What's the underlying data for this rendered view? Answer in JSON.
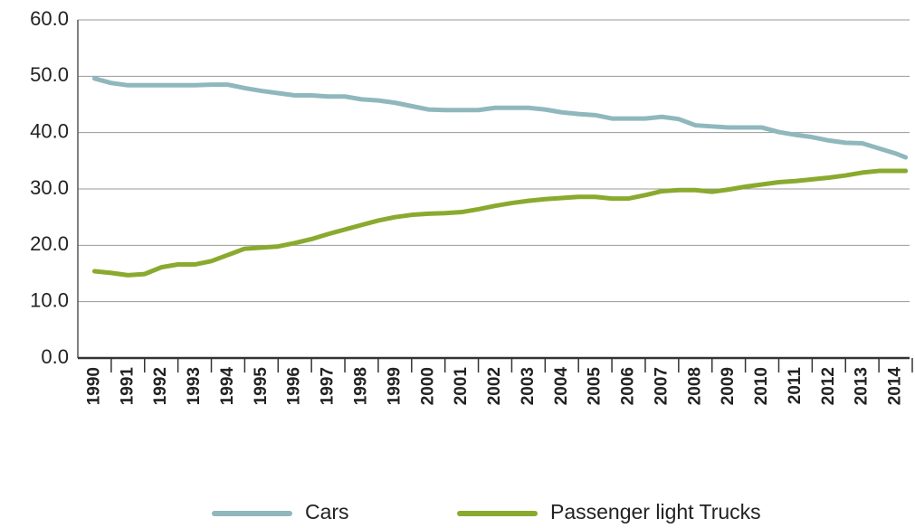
{
  "chart_data": {
    "type": "line",
    "x": [
      1990,
      1990.5,
      1991,
      1991.5,
      1992,
      1992.5,
      1993,
      1993.5,
      1994,
      1994.5,
      1995,
      1995.5,
      1996,
      1996.5,
      1997,
      1997.5,
      1998,
      1998.5,
      1999,
      1999.5,
      2000,
      2000.5,
      2001,
      2001.5,
      2002,
      2002.5,
      2003,
      2003.5,
      2004,
      2004.5,
      2005,
      2005.5,
      2006,
      2006.5,
      2007,
      2007.5,
      2008,
      2008.5,
      2009,
      2009.5,
      2010,
      2010.5,
      2011,
      2011.5,
      2012,
      2012.5,
      2013,
      2013.5,
      2014,
      2014.3
    ],
    "series": [
      {
        "name": "Cars",
        "color": "#8fb8bd",
        "values": [
          49.6,
          48.8,
          48.4,
          48.4,
          48.4,
          48.4,
          48.4,
          48.5,
          48.5,
          47.9,
          47.4,
          47.0,
          46.6,
          46.6,
          46.4,
          46.4,
          45.9,
          45.7,
          45.3,
          44.7,
          44.1,
          44.0,
          44.0,
          44.0,
          44.4,
          44.4,
          44.4,
          44.1,
          43.6,
          43.3,
          43.1,
          42.5,
          42.5,
          42.5,
          42.8,
          42.4,
          41.3,
          41.1,
          40.9,
          40.9,
          40.9,
          40.1,
          39.6,
          39.2,
          38.6,
          38.2,
          38.1,
          37.2,
          36.3,
          35.6
        ]
      },
      {
        "name": "Passenger light Trucks",
        "color": "#8aaa2f",
        "values": [
          15.4,
          15.1,
          14.7,
          14.9,
          16.1,
          16.6,
          16.6,
          17.2,
          18.3,
          19.4,
          19.6,
          19.8,
          20.4,
          21.1,
          22.0,
          22.8,
          23.6,
          24.4,
          25.0,
          25.4,
          25.6,
          25.7,
          25.9,
          26.4,
          27.0,
          27.5,
          27.9,
          28.2,
          28.4,
          28.6,
          28.6,
          28.3,
          28.3,
          28.9,
          29.6,
          29.8,
          29.8,
          29.5,
          29.9,
          30.4,
          30.8,
          31.2,
          31.4,
          31.7,
          32.0,
          32.4,
          32.9,
          33.2,
          33.2,
          33.2
        ]
      }
    ],
    "xlim": [
      1989.5,
      2014.5
    ],
    "xticks": [
      1990,
      1991,
      1992,
      1993,
      1994,
      1995,
      1996,
      1997,
      1998,
      1999,
      2000,
      2001,
      2002,
      2003,
      2004,
      2005,
      2006,
      2007,
      2008,
      2009,
      2010,
      2011,
      2012,
      2013,
      2014
    ],
    "ylim": [
      0,
      60
    ],
    "yticks": [
      {
        "value": 0,
        "label": "0.0"
      },
      {
        "value": 10,
        "label": "10.0"
      },
      {
        "value": 20,
        "label": "20.0"
      },
      {
        "value": 30,
        "label": "30.0"
      },
      {
        "value": 40,
        "label": "40.0"
      },
      {
        "value": 50,
        "label": "50.0"
      },
      {
        "value": 60,
        "label": "60.0"
      }
    ],
    "grid": true
  }
}
